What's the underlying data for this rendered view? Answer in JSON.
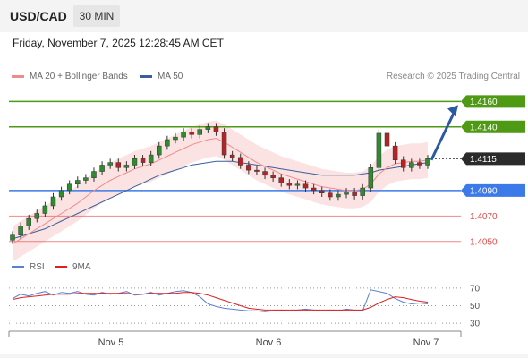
{
  "header": {
    "pair": "USD/CAD",
    "timeframe": "30 MIN"
  },
  "datetime": "Friday, November 7, 2025 12:28:45 AM CET",
  "legend": {
    "ma20": {
      "label": "MA 20 + Bollinger Bands",
      "color": "#f08b8b"
    },
    "ma50": {
      "label": "MA 50",
      "color": "#3a5f9a"
    }
  },
  "copyright": "Research © 2025 Trading Central",
  "rsi_legend": {
    "rsi": {
      "label": "RSI",
      "color": "#5b7fd1"
    },
    "ma9": {
      "label": "9MA",
      "color": "#e02020"
    }
  },
  "chart_data": [
    {
      "type": "candlestick",
      "title": "",
      "ylim": [
        1.404,
        1.4175
      ],
      "y_ticks": [
        1.405,
        1.407,
        1.409,
        1.4115,
        1.414,
        1.416
      ],
      "x_ticks": [
        "Nov 5",
        "Nov 6",
        "Nov 7"
      ],
      "levels": [
        {
          "label": "1.4160",
          "value": 1.416,
          "kind": "resistance",
          "color": "#4f9a14"
        },
        {
          "label": "1.4140",
          "value": 1.414,
          "kind": "resistance",
          "color": "#4f9a14"
        },
        {
          "label": "1.4115",
          "value": 1.4115,
          "kind": "last",
          "color": "#2b2b2b"
        },
        {
          "label": "1.4090",
          "value": 1.409,
          "kind": "pivot",
          "color": "#3b7ae8"
        },
        {
          "label": "1.4070",
          "value": 1.407,
          "kind": "support",
          "color": "#e34a4a"
        },
        {
          "label": "1.4050",
          "value": 1.405,
          "kind": "support",
          "color": "#e34a4a"
        }
      ],
      "close_series": [
        1.4055,
        1.4062,
        1.4068,
        1.4072,
        1.4078,
        1.4085,
        1.409,
        1.4095,
        1.4098,
        1.41,
        1.4105,
        1.411,
        1.4112,
        1.4108,
        1.411,
        1.4115,
        1.4112,
        1.4118,
        1.4125,
        1.413,
        1.4132,
        1.4136,
        1.4134,
        1.4138,
        1.414,
        1.4136,
        1.4118,
        1.4116,
        1.411,
        1.4106,
        1.4105,
        1.4102,
        1.41,
        1.4096,
        1.4094,
        1.4095,
        1.4092,
        1.409,
        1.4088,
        1.4085,
        1.4087,
        1.4089,
        1.4086,
        1.4092,
        1.4108,
        1.4135,
        1.4125,
        1.4114,
        1.4108,
        1.4112,
        1.411,
        1.4115
      ],
      "ma20_series": [
        1.4048,
        1.4052,
        1.4056,
        1.406,
        1.4064,
        1.4068,
        1.4072,
        1.4076,
        1.408,
        1.4085,
        1.409,
        1.4094,
        1.4098,
        1.4101,
        1.4104,
        1.4107,
        1.4109,
        1.4111,
        1.4114,
        1.4117,
        1.412,
        1.4123,
        1.4126,
        1.4128,
        1.413,
        1.4131,
        1.4128,
        1.4124,
        1.412,
        1.4116,
        1.4112,
        1.4109,
        1.4106,
        1.4103,
        1.4101,
        1.4099,
        1.4097,
        1.4095,
        1.4093,
        1.4092,
        1.4091,
        1.409,
        1.409,
        1.4091,
        1.4095,
        1.4103,
        1.4108,
        1.4111,
        1.4112,
        1.4113,
        1.4113,
        1.4114
      ],
      "ma50_series": [
        1.4052,
        1.4054,
        1.4056,
        1.4058,
        1.406,
        1.4063,
        1.4066,
        1.4069,
        1.4072,
        1.4075,
        1.4078,
        1.4081,
        1.4084,
        1.4087,
        1.409,
        1.4093,
        1.4096,
        1.4099,
        1.4102,
        1.4104,
        1.4106,
        1.4108,
        1.411,
        1.4111,
        1.4112,
        1.4113,
        1.4113,
        1.4113,
        1.4112,
        1.4111,
        1.411,
        1.4109,
        1.4108,
        1.4107,
        1.4106,
        1.4105,
        1.4104,
        1.4103,
        1.4102,
        1.4102,
        1.4102,
        1.4102,
        1.4102,
        1.4103,
        1.4104,
        1.4106,
        1.4107,
        1.4108,
        1.4109,
        1.411,
        1.4111,
        1.4112
      ],
      "band_width": 0.0014,
      "projection": {
        "from": 1.4114,
        "to": 1.416
      }
    },
    {
      "type": "line",
      "title": "",
      "ylim": [
        25,
        80
      ],
      "y_ticks": [
        30,
        50,
        70
      ],
      "series": [
        {
          "name": "RSI",
          "values": [
            58,
            63,
            61,
            64,
            66,
            62,
            65,
            64,
            66,
            63,
            62,
            65,
            63,
            64,
            66,
            62,
            63,
            65,
            62,
            64,
            66,
            67,
            65,
            60,
            52,
            49,
            47,
            46,
            45,
            44,
            44,
            43,
            44,
            45,
            44,
            45,
            46,
            45,
            44,
            45,
            44,
            46,
            45,
            44,
            68,
            66,
            64,
            58,
            54,
            52,
            53,
            52
          ]
        },
        {
          "name": "9MA",
          "values": [
            57,
            59,
            60,
            61,
            62,
            63,
            63,
            63,
            64,
            64,
            64,
            64,
            64,
            64,
            64,
            63,
            63,
            64,
            64,
            64,
            64,
            65,
            65,
            64,
            62,
            59,
            56,
            53,
            50,
            47,
            46,
            45,
            45,
            45,
            45,
            45,
            45,
            45,
            45,
            45,
            45,
            45,
            45,
            45,
            48,
            53,
            57,
            60,
            59,
            57,
            55,
            54
          ]
        }
      ]
    }
  ]
}
